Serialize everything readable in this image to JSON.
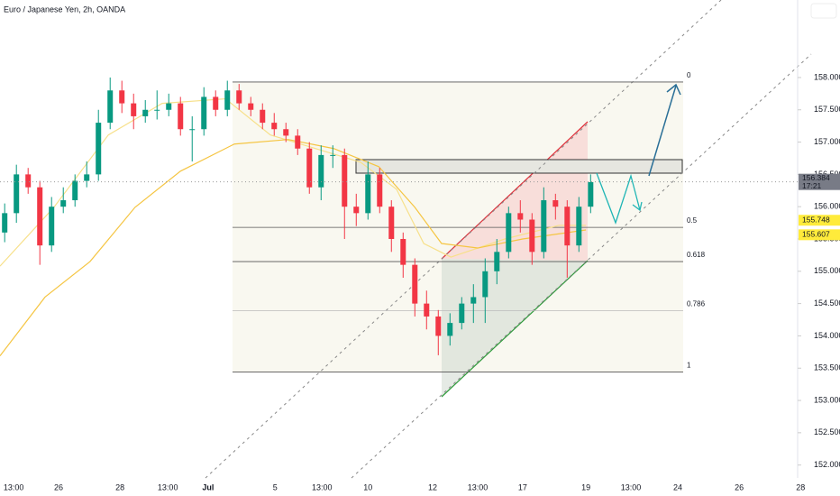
{
  "chart_data": {
    "type": "candlestick",
    "title": "Euro / Japanese Yen, 2h, OANDA",
    "up_color": "#089981",
    "down_color": "#f23645",
    "x": [
      1,
      3.5,
      6,
      8.5,
      11,
      13.5,
      16,
      18.5,
      21,
      23.5,
      26,
      28.5,
      31,
      33.5,
      36,
      38.5,
      41,
      43.5,
      46,
      48.5,
      51,
      53.5,
      56,
      58.5,
      61,
      63.5,
      66,
      68.5,
      71,
      73.5,
      76,
      78.5,
      81,
      83.5,
      86,
      88.5,
      91,
      93.5,
      96,
      98.5,
      101,
      103.5,
      106,
      108.5,
      111,
      113.5,
      116,
      118.5,
      121,
      123.5,
      126
    ],
    "open": [
      155.6,
      155.9,
      156.5,
      156.3,
      155.4,
      156.0,
      156.1,
      156.4,
      156.5,
      157.3,
      157.8,
      157.6,
      157.4,
      157.5,
      157.5,
      157.6,
      157.2,
      157.2,
      157.7,
      157.5,
      157.8,
      157.6,
      157.5,
      157.3,
      157.2,
      157.1,
      156.9,
      156.3,
      156.8,
      156.8,
      156.0,
      155.9,
      156.5,
      156.0,
      155.5,
      155.1,
      154.5,
      154.3,
      154.0,
      154.2,
      154.5,
      154.6,
      155.0,
      155.3,
      155.9,
      155.8,
      155.3,
      156.1,
      156.0,
      155.4,
      156.0
    ],
    "high": [
      156.05,
      156.65,
      156.6,
      156.4,
      156.15,
      156.3,
      156.5,
      156.7,
      157.5,
      158.0,
      157.95,
      157.75,
      157.65,
      157.8,
      157.75,
      157.7,
      157.4,
      157.85,
      157.8,
      157.95,
      157.9,
      157.7,
      157.6,
      157.45,
      157.3,
      157.2,
      157.0,
      156.95,
      156.95,
      156.9,
      156.2,
      156.7,
      156.6,
      156.1,
      155.6,
      155.2,
      154.7,
      154.4,
      154.35,
      154.6,
      154.8,
      155.2,
      155.5,
      156.0,
      156.1,
      155.9,
      156.3,
      156.2,
      156.1,
      156.15,
      156.5
    ],
    "low": [
      155.45,
      155.75,
      156.2,
      155.1,
      155.3,
      155.9,
      156.0,
      156.3,
      156.4,
      157.2,
      157.45,
      157.2,
      157.3,
      157.35,
      157.4,
      157.1,
      156.7,
      157.1,
      157.4,
      157.4,
      157.5,
      157.4,
      157.2,
      157.1,
      157.0,
      156.8,
      156.2,
      156.1,
      156.6,
      155.5,
      155.7,
      155.8,
      155.9,
      155.3,
      154.9,
      154.3,
      154.1,
      153.7,
      153.85,
      154.1,
      154.2,
      154.2,
      154.8,
      155.2,
      155.6,
      155.1,
      155.2,
      155.8,
      154.9,
      155.3,
      155.9
    ],
    "close": [
      155.9,
      156.5,
      156.3,
      155.4,
      156.0,
      156.1,
      156.4,
      156.5,
      157.3,
      157.8,
      157.6,
      157.4,
      157.5,
      157.5,
      157.6,
      157.2,
      157.2,
      157.7,
      157.5,
      157.8,
      157.6,
      157.5,
      157.3,
      157.2,
      157.1,
      156.9,
      156.3,
      156.8,
      156.8,
      156.0,
      155.9,
      156.5,
      156.0,
      155.5,
      155.1,
      154.5,
      154.3,
      154.0,
      154.2,
      154.5,
      154.6,
      155.0,
      155.3,
      155.9,
      155.8,
      155.3,
      156.1,
      156.0,
      155.4,
      156.0,
      156.38
    ],
    "moving_averages": [
      {
        "color": "#f7e08a",
        "x": [
          0,
          11.5,
          23.1,
          34.6,
          48.1,
          57.7,
          67.3,
          76.9,
          84.6,
          90.4,
          96.2,
          107.7,
          119.2,
          125
        ],
        "values": [
          155.08,
          155.99,
          157.11,
          157.6,
          157.67,
          157.11,
          156.9,
          156.69,
          156.27,
          155.43,
          155.22,
          155.5,
          155.71,
          155.71
        ]
      },
      {
        "color": "#f5c542",
        "x": [
          0,
          9.6,
          19.2,
          28.8,
          38.5,
          50,
          61.5,
          71.2,
          80.8,
          88.5,
          94.2,
          101.9,
          111.5,
          125
        ],
        "values": [
          153.69,
          154.6,
          155.15,
          155.99,
          156.55,
          156.97,
          157.04,
          156.9,
          156.62,
          155.99,
          155.43,
          155.36,
          155.5,
          155.64
        ]
      }
    ],
    "fib": {
      "levels": [
        0,
        0.5,
        0.618,
        0.786,
        1
      ],
      "prices": [
        157.93,
        155.68,
        155.15,
        154.39,
        153.44
      ]
    },
    "ylim": [
      151.8,
      159.2
    ],
    "yticks": [
      {
        "value": 158,
        "label": "158.000"
      },
      {
        "value": 157.5,
        "label": "157.500"
      },
      {
        "value": 157,
        "label": "157.000"
      },
      {
        "value": 156.5,
        "label": "156.500"
      },
      {
        "value": 156,
        "label": "156.000"
      },
      {
        "value": 155.5,
        "label": "155.500"
      },
      {
        "value": 155,
        "label": "155.000"
      },
      {
        "value": 154.5,
        "label": "154.500"
      },
      {
        "value": 154,
        "label": "154.000"
      },
      {
        "value": 153.5,
        "label": "153.500"
      },
      {
        "value": 153,
        "label": "153.000"
      },
      {
        "value": 152.5,
        "label": "152.500"
      },
      {
        "value": 152,
        "label": "152.000"
      }
    ],
    "xlim": [
      0,
      179.2
    ],
    "xticks": [
      {
        "value": 2.9,
        "label": "13:00"
      },
      {
        "value": 12.5,
        "label": "26"
      },
      {
        "value": 25.6,
        "label": "28"
      },
      {
        "value": 35.8,
        "label": "13:00"
      },
      {
        "value": 44.4,
        "label": "Jul"
      },
      {
        "value": 58.7,
        "label": "5"
      },
      {
        "value": 68.7,
        "label": "13:00"
      },
      {
        "value": 78.5,
        "label": "10"
      },
      {
        "value": 92.3,
        "label": "12"
      },
      {
        "value": 101.9,
        "label": "13:00"
      },
      {
        "value": 111.5,
        "label": "17"
      },
      {
        "value": 125,
        "label": "19"
      },
      {
        "value": 134.6,
        "label": "13:00"
      },
      {
        "value": 144.6,
        "label": "24"
      },
      {
        "value": 157.7,
        "label": "26"
      },
      {
        "value": 170.8,
        "label": "28"
      }
    ],
    "last_price": 156.384,
    "last_time": "17:21",
    "price_tags": [
      155.748,
      155.607
    ]
  }
}
